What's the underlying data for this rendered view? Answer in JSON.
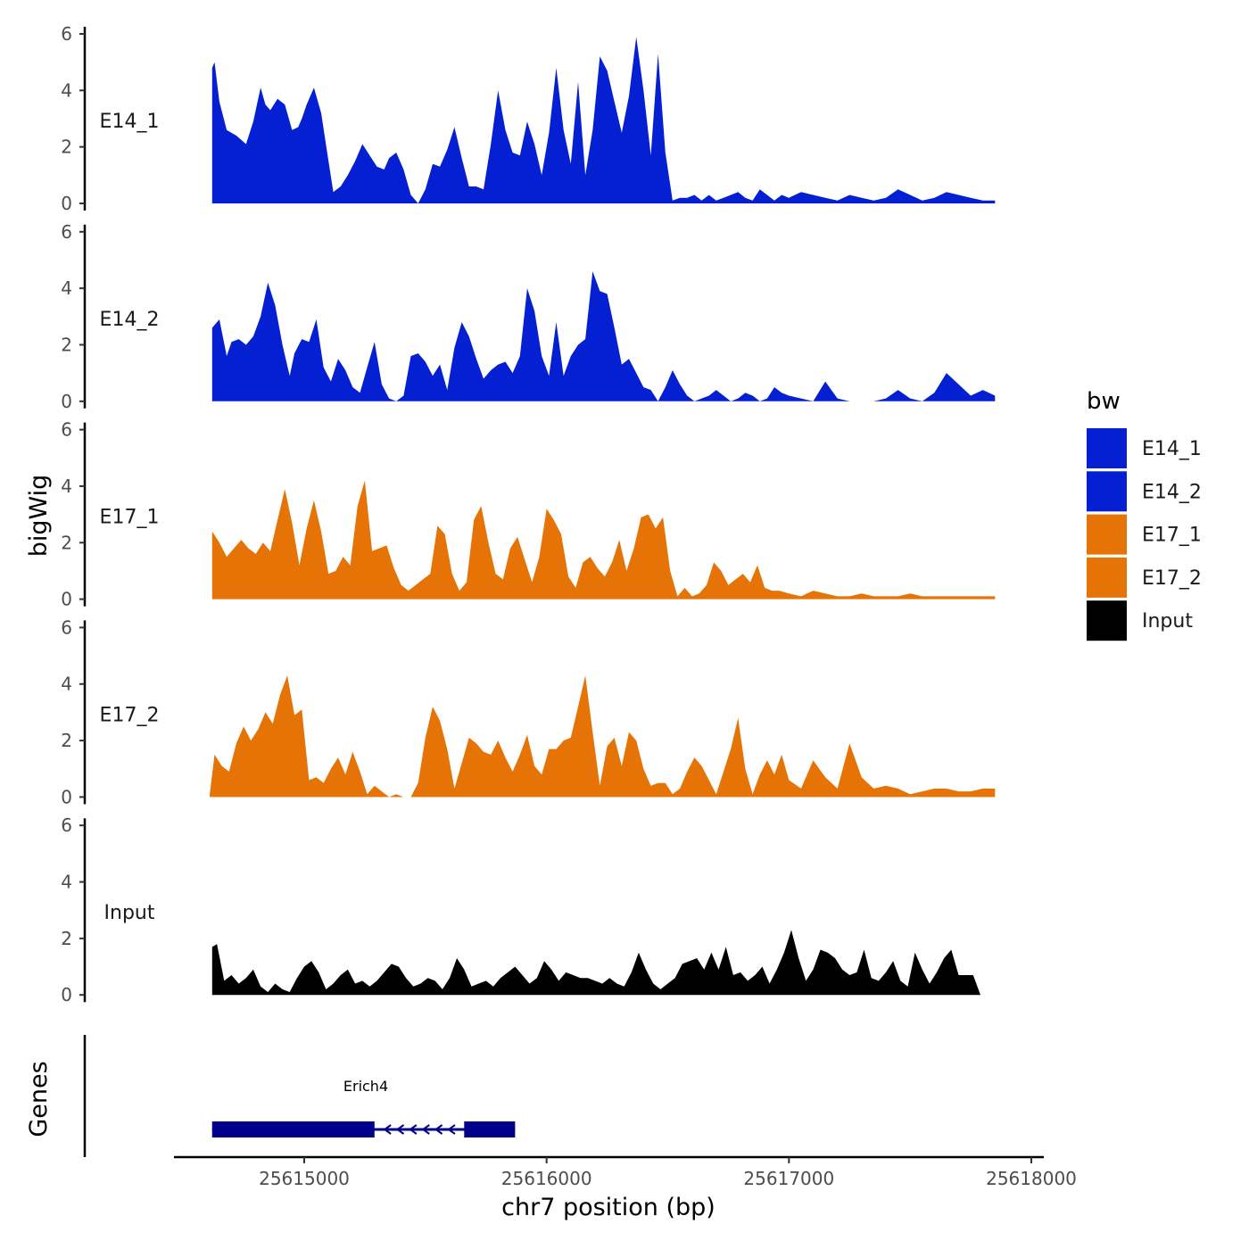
{
  "chart_data": {
    "type": "area",
    "xlabel": "chr7 position (bp)",
    "ylabel": "bigWig",
    "gene_track_label": "Genes",
    "x_ticks": [
      25615000,
      25616000,
      25617000,
      25618000
    ],
    "x_tick_labels": [
      "25615000",
      "25616000",
      "25617000",
      "25618000"
    ],
    "xlim": [
      25614450,
      25618050
    ],
    "ylim": [
      0,
      6
    ],
    "y_ticks": [
      0,
      2,
      4,
      6
    ],
    "y_tick_labels": [
      "0",
      "2",
      "4",
      "6"
    ],
    "legend": {
      "title": "bw",
      "position": "right",
      "entries": [
        {
          "label": "E14_1",
          "color": "#0520d2"
        },
        {
          "label": "E14_2",
          "color": "#0520d2"
        },
        {
          "label": "E17_1",
          "color": "#e67305"
        },
        {
          "label": "E17_2",
          "color": "#e67305"
        },
        {
          "label": "Input",
          "color": "#000000"
        }
      ]
    },
    "series": [
      {
        "name": "E14_1",
        "color": "#0520d2",
        "x": [
          25614620,
          25614630,
          25614650,
          25614680,
          25614720,
          25614760,
          25614790,
          25614820,
          25614840,
          25614860,
          25614890,
          25614920,
          25614950,
          25614975,
          25614990,
          25615010,
          25615040,
          25615070,
          25615100,
          25615120,
          25615150,
          25615180,
          25615210,
          25615240,
          25615270,
          25615300,
          25615330,
          25615350,
          25615380,
          25615410,
          25615440,
          25615470,
          25615500,
          25615530,
          25615560,
          25615590,
          25615620,
          25615650,
          25615680,
          25615710,
          25615740,
          25615770,
          25615800,
          25615830,
          25615860,
          25615890,
          25615920,
          25615950,
          25615980,
          25616010,
          25616040,
          25616070,
          25616100,
          25616130,
          25616160,
          25616190,
          25616220,
          25616250,
          25616280,
          25616310,
          25616340,
          25616370,
          25616400,
          25616430,
          25616460,
          25616490,
          25616520,
          25616550,
          25616580,
          25616610,
          25616640,
          25616670,
          25616700,
          25616730,
          25616760,
          25616790,
          25616820,
          25616850,
          25616880,
          25616910,
          25616940,
          25616970,
          25617000,
          25617050,
          25617100,
          25617150,
          25617200,
          25617250,
          25617300,
          25617350,
          25617400,
          25617450,
          25617500,
          25617550,
          25617600,
          25617650,
          25617700,
          25617750,
          25617800,
          25617850
        ],
        "y": [
          4.8,
          5.0,
          3.6,
          2.6,
          2.4,
          2.1,
          2.9,
          4.1,
          3.5,
          3.3,
          3.7,
          3.5,
          2.6,
          2.7,
          3.0,
          3.5,
          4.1,
          3.2,
          1.5,
          0.4,
          0.6,
          1.0,
          1.5,
          2.1,
          1.7,
          1.3,
          1.2,
          1.6,
          1.8,
          1.2,
          0.3,
          0.0,
          0.5,
          1.4,
          1.3,
          1.9,
          2.7,
          1.6,
          0.6,
          0.6,
          0.5,
          2.1,
          4.0,
          2.6,
          1.8,
          1.7,
          2.9,
          2.1,
          1.0,
          2.5,
          4.8,
          2.6,
          1.4,
          4.3,
          1.0,
          2.6,
          5.2,
          4.7,
          3.6,
          2.5,
          3.8,
          5.9,
          4.0,
          1.7,
          5.3,
          1.8,
          0.1,
          0.2,
          0.2,
          0.3,
          0.1,
          0.3,
          0.1,
          0.2,
          0.3,
          0.4,
          0.2,
          0.1,
          0.5,
          0.3,
          0.1,
          0.3,
          0.2,
          0.4,
          0.3,
          0.2,
          0.1,
          0.3,
          0.2,
          0.1,
          0.2,
          0.5,
          0.3,
          0.1,
          0.2,
          0.4,
          0.3,
          0.2,
          0.1,
          0.1
        ]
      },
      {
        "name": "E14_2",
        "color": "#0520d2",
        "x": [
          25614620,
          25614630,
          25614650,
          25614680,
          25614700,
          25614730,
          25614760,
          25614790,
          25614820,
          25614850,
          25614880,
          25614910,
          25614940,
          25614960,
          25614990,
          25615020,
          25615050,
          25615080,
          25615110,
          25615140,
          25615170,
          25615200,
          25615230,
          25615260,
          25615290,
          25615320,
          25615350,
          25615380,
          25615410,
          25615440,
          25615470,
          25615500,
          25615530,
          25615560,
          25615590,
          25615620,
          25615650,
          25615680,
          25615710,
          25615740,
          25615770,
          25615800,
          25615830,
          25615860,
          25615890,
          25615920,
          25615950,
          25615980,
          25616010,
          25616040,
          25616070,
          25616100,
          25616130,
          25616160,
          25616190,
          25616220,
          25616250,
          25616280,
          25616310,
          25616340,
          25616370,
          25616400,
          25616430,
          25616460,
          25616490,
          25616520,
          25616550,
          25616580,
          25616610,
          25616640,
          25616670,
          25616700,
          25616730,
          25616760,
          25616790,
          25616820,
          25616850,
          25616880,
          25616910,
          25616940,
          25616970,
          25617000,
          25617050,
          25617100,
          25617150,
          25617200,
          25617250,
          25617300,
          25617350,
          25617400,
          25617450,
          25617500,
          25617550,
          25617600,
          25617650,
          25617700,
          25617750,
          25617800,
          25617850
        ],
        "y": [
          2.6,
          2.7,
          2.9,
          1.6,
          2.1,
          2.2,
          2.0,
          2.3,
          3.0,
          4.2,
          3.4,
          2.0,
          0.9,
          1.7,
          2.2,
          2.1,
          2.9,
          1.2,
          0.7,
          1.5,
          1.1,
          0.5,
          0.3,
          1.2,
          2.1,
          0.6,
          0.1,
          0.0,
          0.2,
          1.6,
          1.7,
          1.4,
          0.9,
          1.3,
          0.4,
          1.9,
          2.8,
          2.3,
          1.5,
          0.8,
          1.1,
          1.3,
          1.4,
          1.0,
          1.6,
          4.0,
          3.2,
          1.6,
          0.9,
          2.8,
          0.9,
          1.6,
          2.0,
          2.2,
          4.6,
          3.9,
          3.8,
          2.6,
          1.3,
          1.5,
          1.0,
          0.5,
          0.4,
          0.0,
          0.5,
          1.1,
          0.6,
          0.2,
          0.0,
          0.1,
          0.2,
          0.4,
          0.2,
          0.0,
          0.1,
          0.3,
          0.2,
          0.0,
          0.1,
          0.5,
          0.3,
          0.2,
          0.1,
          0.0,
          0.7,
          0.1,
          0.0,
          0.0,
          0.0,
          0.1,
          0.4,
          0.1,
          0.0,
          0.3,
          1.0,
          0.6,
          0.2,
          0.4,
          0.2
        ]
      },
      {
        "name": "E17_1",
        "color": "#e67305",
        "x": [
          25614620,
          25614650,
          25614680,
          25614710,
          25614740,
          25614770,
          25614800,
          25614830,
          25614860,
          25614890,
          25614920,
          25614950,
          25614980,
          25615010,
          25615040,
          25615070,
          25615100,
          25615130,
          25615160,
          25615190,
          25615220,
          25615250,
          25615280,
          25615310,
          25615340,
          25615370,
          25615400,
          25615430,
          25615460,
          25615490,
          25615520,
          25615550,
          25615580,
          25615610,
          25615640,
          25615670,
          25615700,
          25615730,
          25615760,
          25615790,
          25615820,
          25615850,
          25615880,
          25615910,
          25615940,
          25615970,
          25616000,
          25616030,
          25616060,
          25616090,
          25616120,
          25616150,
          25616180,
          25616210,
          25616240,
          25616270,
          25616300,
          25616330,
          25616360,
          25616390,
          25616420,
          25616450,
          25616480,
          25616510,
          25616540,
          25616570,
          25616600,
          25616630,
          25616660,
          25616690,
          25616720,
          25616750,
          25616780,
          25616810,
          25616840,
          25616870,
          25616900,
          25616930,
          25616960,
          25617000,
          25617050,
          25617100,
          25617150,
          25617200,
          25617250,
          25617300,
          25617350,
          25617400,
          25617450,
          25617500,
          25617550,
          25617600,
          25617650,
          25617700,
          25617750,
          25617800,
          25617850
        ],
        "y": [
          2.4,
          2.0,
          1.5,
          1.8,
          2.1,
          1.8,
          1.6,
          2.0,
          1.7,
          2.8,
          3.9,
          2.7,
          1.2,
          2.5,
          3.5,
          2.4,
          0.9,
          1.0,
          1.5,
          1.2,
          3.3,
          4.2,
          1.7,
          1.8,
          1.9,
          1.1,
          0.5,
          0.3,
          0.5,
          0.7,
          0.9,
          2.6,
          2.3,
          0.9,
          0.3,
          0.6,
          2.8,
          3.3,
          2.0,
          0.9,
          0.7,
          1.8,
          2.2,
          1.4,
          0.6,
          1.5,
          3.2,
          2.8,
          2.3,
          0.8,
          0.4,
          1.3,
          1.5,
          1.1,
          0.8,
          1.3,
          2.1,
          1.0,
          1.8,
          2.9,
          3.0,
          2.5,
          2.9,
          1.0,
          0.1,
          0.4,
          0.1,
          0.2,
          0.5,
          1.3,
          1.0,
          0.5,
          0.7,
          0.9,
          0.6,
          1.2,
          0.4,
          0.3,
          0.3,
          0.2,
          0.1,
          0.3,
          0.2,
          0.1,
          0.1,
          0.2,
          0.1,
          0.1,
          0.1,
          0.2,
          0.1,
          0.1,
          0.1,
          0.1,
          0.1,
          0.1,
          0.1
        ]
      },
      {
        "name": "E17_2",
        "color": "#e67305",
        "x": [
          25614610,
          25614630,
          25614660,
          25614690,
          25614720,
          25614750,
          25614780,
          25614810,
          25614840,
          25614870,
          25614900,
          25614930,
          25614960,
          25614990,
          25615020,
          25615050,
          25615080,
          25615110,
          25615140,
          25615170,
          25615200,
          25615230,
          25615260,
          25615290,
          25615320,
          25615350,
          25615380,
          25615410,
          25615440,
          25615470,
          25615500,
          25615530,
          25615560,
          25615590,
          25615620,
          25615650,
          25615680,
          25615710,
          25615740,
          25615770,
          25615800,
          25615830,
          25615860,
          25615890,
          25615920,
          25615950,
          25615980,
          25616010,
          25616040,
          25616070,
          25616100,
          25616130,
          25616160,
          25616190,
          25616220,
          25616250,
          25616280,
          25616310,
          25616340,
          25616370,
          25616400,
          25616430,
          25616460,
          25616490,
          25616520,
          25616550,
          25616580,
          25616610,
          25616640,
          25616670,
          25616700,
          25616730,
          25616760,
          25616790,
          25616820,
          25616850,
          25616880,
          25616910,
          25616940,
          25616970,
          25617000,
          25617050,
          25617100,
          25617150,
          25617200,
          25617250,
          25617300,
          25617350,
          25617400,
          25617450,
          25617500,
          25617550,
          25617600,
          25617650,
          25617700,
          25617750,
          25617800,
          25617850
        ],
        "y": [
          0.1,
          1.5,
          1.1,
          0.9,
          1.9,
          2.5,
          2.0,
          2.4,
          3.0,
          2.6,
          3.6,
          4.3,
          2.9,
          3.1,
          0.6,
          0.7,
          0.5,
          1.0,
          1.4,
          0.8,
          1.6,
          0.9,
          0.1,
          0.4,
          0.2,
          0.0,
          0.1,
          0.0,
          0.0,
          0.5,
          2.1,
          3.2,
          2.7,
          1.7,
          0.3,
          1.2,
          2.1,
          1.9,
          1.6,
          1.5,
          2.0,
          1.4,
          0.9,
          1.5,
          2.2,
          1.1,
          0.8,
          1.7,
          1.7,
          2.0,
          2.1,
          3.2,
          4.3,
          2.3,
          0.4,
          1.8,
          2.1,
          1.1,
          2.3,
          2.0,
          1.0,
          0.4,
          0.5,
          0.5,
          0.1,
          0.3,
          0.9,
          1.4,
          1.1,
          0.6,
          0.1,
          0.9,
          1.7,
          2.8,
          1.0,
          0.1,
          0.8,
          1.3,
          0.8,
          1.5,
          0.6,
          0.3,
          1.3,
          0.7,
          0.3,
          1.9,
          0.7,
          0.3,
          0.4,
          0.3,
          0.1,
          0.2,
          0.3,
          0.3,
          0.2,
          0.2,
          0.3,
          0.3
        ]
      },
      {
        "name": "Input",
        "color": "#000000",
        "x": [
          25614620,
          25614640,
          25614670,
          25614700,
          25614730,
          25614760,
          25614790,
          25614820,
          25614850,
          25614880,
          25614910,
          25614940,
          25614970,
          25615000,
          25615030,
          25615060,
          25615090,
          25615120,
          25615150,
          25615180,
          25615210,
          25615240,
          25615270,
          25615300,
          25615330,
          25615360,
          25615390,
          25615420,
          25615450,
          25615480,
          25615510,
          25615540,
          25615570,
          25615600,
          25615630,
          25615660,
          25615690,
          25615720,
          25615750,
          25615780,
          25615810,
          25615840,
          25615870,
          25615900,
          25615930,
          25615960,
          25615990,
          25616020,
          25616050,
          25616080,
          25616110,
          25616140,
          25616170,
          25616200,
          25616230,
          25616260,
          25616290,
          25616320,
          25616350,
          25616380,
          25616410,
          25616440,
          25616470,
          25616500,
          25616530,
          25616560,
          25616590,
          25616620,
          25616650,
          25616680,
          25616710,
          25616740,
          25616770,
          25616800,
          25616830,
          25616860,
          25616890,
          25616920,
          25616950,
          25616980,
          25617010,
          25617040,
          25617070,
          25617100,
          25617130,
          25617160,
          25617190,
          25617220,
          25617250,
          25617280,
          25617310,
          25617340,
          25617370,
          25617400,
          25617430,
          25617460,
          25617490,
          25617520,
          25617550,
          25617580,
          25617610,
          25617640,
          25617670,
          25617700,
          25617730,
          25617760,
          25617790,
          25617820,
          25617850
        ],
        "y": [
          1.7,
          1.8,
          0.5,
          0.7,
          0.4,
          0.6,
          0.9,
          0.3,
          0.1,
          0.4,
          0.2,
          0.1,
          0.6,
          1.0,
          1.2,
          0.8,
          0.2,
          0.4,
          0.7,
          0.9,
          0.4,
          0.5,
          0.3,
          0.5,
          0.8,
          1.1,
          1.0,
          0.6,
          0.3,
          0.4,
          0.6,
          0.5,
          0.2,
          0.6,
          1.3,
          0.9,
          0.3,
          0.4,
          0.5,
          0.3,
          0.6,
          0.8,
          1.0,
          0.7,
          0.4,
          0.6,
          1.2,
          0.9,
          0.5,
          0.8,
          0.7,
          0.6,
          0.6,
          0.5,
          0.4,
          0.6,
          0.4,
          0.3,
          0.8,
          1.5,
          0.9,
          0.4,
          0.2,
          0.4,
          0.6,
          1.1,
          1.2,
          1.3,
          0.9,
          1.5,
          0.9,
          1.7,
          0.7,
          0.8,
          0.5,
          0.7,
          1.0,
          0.4,
          0.9,
          1.5,
          2.3,
          1.3,
          0.5,
          0.9,
          1.6,
          1.5,
          1.3,
          0.9,
          0.7,
          0.8,
          1.6,
          0.6,
          0.5,
          0.8,
          1.2,
          0.5,
          0.3,
          1.5,
          0.9,
          0.4,
          0.8,
          1.3,
          1.6,
          0.7,
          0.7,
          0.7,
          0.0,
          0.0,
          0.0
        ],
        "y_note": "values read from plot"
      }
    ],
    "genes": [
      {
        "name": "Erich4",
        "strand": "-",
        "start": 25614620,
        "end": 25615870,
        "exons": [
          [
            25614620,
            25615290
          ],
          [
            25615660,
            25615870
          ]
        ],
        "color": "#00008b"
      }
    ]
  }
}
